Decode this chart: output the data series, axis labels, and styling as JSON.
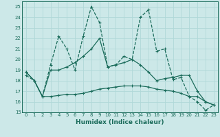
{
  "xlabel": "Humidex (Indice chaleur)",
  "bg_color": "#cce8e8",
  "grid_color": "#b0d8d8",
  "line_color": "#1a6b5a",
  "xlim": [
    -0.5,
    23.5
  ],
  "ylim": [
    15,
    25.5
  ],
  "xticks": [
    0,
    1,
    2,
    3,
    4,
    5,
    6,
    7,
    8,
    9,
    10,
    11,
    12,
    13,
    14,
    15,
    16,
    17,
    18,
    19,
    20,
    21,
    22,
    23
  ],
  "yticks": [
    15,
    16,
    17,
    18,
    19,
    20,
    21,
    22,
    23,
    24,
    25
  ],
  "series1": [
    18.5,
    18.0,
    16.5,
    19.5,
    22.2,
    21.0,
    19.0,
    22.2,
    25.0,
    23.5,
    19.3,
    19.5,
    20.3,
    20.0,
    24.0,
    24.7,
    20.8,
    21.0,
    18.1,
    18.3,
    16.5,
    16.0,
    15.2,
    15.7
  ],
  "series2": [
    18.8,
    18.0,
    16.5,
    19.0,
    19.0,
    19.3,
    19.7,
    20.3,
    21.0,
    22.0,
    19.3,
    19.5,
    19.7,
    20.0,
    19.5,
    18.8,
    18.0,
    18.2,
    18.3,
    18.5,
    18.5,
    17.0,
    16.0,
    15.7
  ],
  "series3": [
    18.8,
    18.0,
    16.5,
    16.5,
    16.6,
    16.7,
    16.7,
    16.8,
    17.0,
    17.2,
    17.3,
    17.4,
    17.5,
    17.5,
    17.5,
    17.4,
    17.2,
    17.1,
    17.0,
    16.8,
    16.5,
    16.5,
    16.0,
    15.7
  ]
}
